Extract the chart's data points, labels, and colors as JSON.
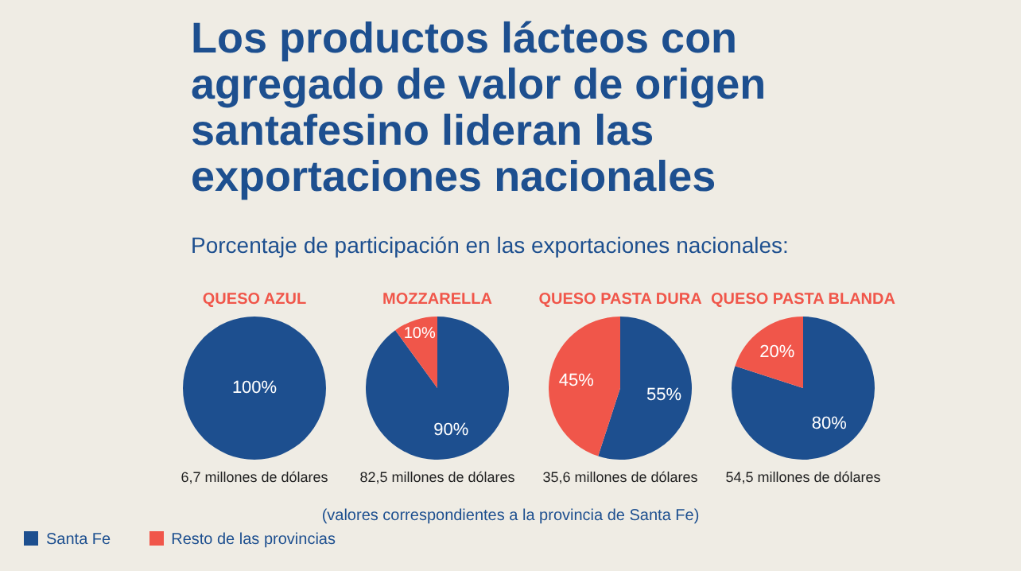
{
  "chart_data": [
    {
      "type": "other",
      "title": "Los productos lácteos con agregado de valor de origen santafesino lideran las exportaciones nacionales",
      "subtitle": "Porcentaje de participación en las exportaciones nacionales:",
      "annotations": [
        "(valores correspondientes a la provincia de Santa Fe)"
      ]
    },
    {
      "type": "pie",
      "title": "QUESO AZUL",
      "categories": [
        "Santa Fe",
        "Resto de las provincias"
      ],
      "values": [
        100,
        0
      ],
      "value_labels": [
        "100%",
        null
      ],
      "colors": [
        "#1d4f8f",
        "#f0564a"
      ],
      "annotations": [
        "6,7 millones de dólares"
      ],
      "legend": "bottom"
    },
    {
      "type": "pie",
      "title": "MOZZARELLA",
      "categories": [
        null,
        null
      ],
      "values": [
        90,
        10
      ],
      "value_labels": [
        "90%",
        "10%"
      ],
      "colors": [
        "#1d4f8f",
        "#f0564a"
      ],
      "annotations": [
        "82,5 millones de dólares"
      ]
    },
    {
      "type": "pie",
      "title": "QUESO PASTA DURA",
      "categories": [
        null,
        null
      ],
      "values": [
        55,
        45
      ],
      "value_labels": [
        "55%",
        "45%"
      ],
      "colors": [
        "#1d4f8f",
        "#f0564a"
      ],
      "annotations": [
        "35,6 millones de dólares"
      ]
    },
    {
      "type": "pie",
      "title": "QUESO PASTA BLANDA",
      "categories": [
        null,
        null
      ],
      "values": [
        80,
        20
      ],
      "value_labels": [
        "80%",
        "20%"
      ],
      "colors": [
        "#1d4f8f",
        "#f0564a"
      ],
      "annotations": [
        "54,5 millones de dólares"
      ]
    }
  ]
}
